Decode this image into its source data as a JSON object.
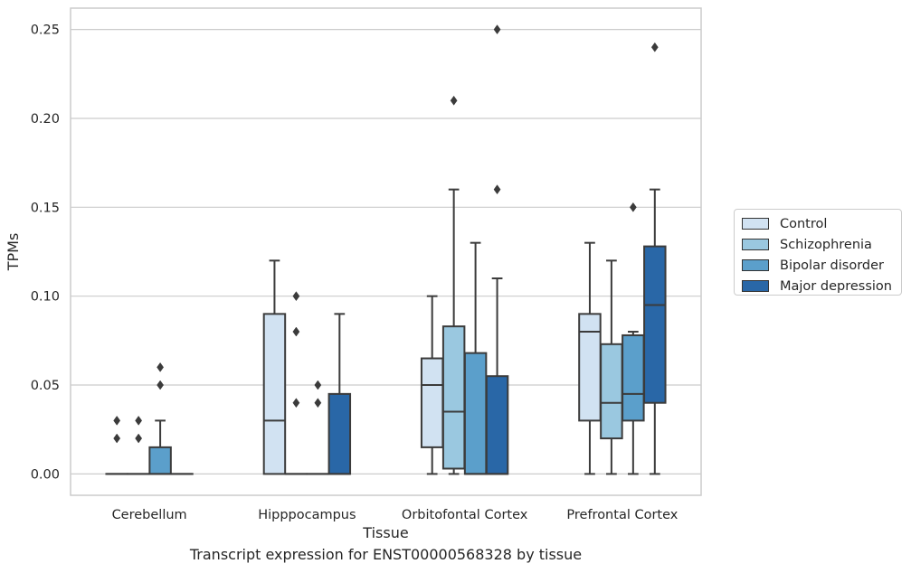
{
  "caption": "Transcript expression for ENST00000568328 by tissue",
  "chart_data": {
    "type": "box",
    "xlabel": "Tissue",
    "ylabel": "TPMs",
    "ylim": [
      -0.012,
      0.262
    ],
    "yticks": [
      "0.00",
      "0.05",
      "0.10",
      "0.15",
      "0.20",
      "0.25"
    ],
    "ytick_values": [
      0,
      0.05,
      0.1,
      0.15,
      0.2,
      0.25
    ],
    "grid": true,
    "legend_position": "right",
    "categories": [
      "Cerebellum",
      "Hipppocampus",
      "Orbitofontal Cortex",
      "Prefrontal Cortex"
    ],
    "series": [
      {
        "name": "Control",
        "color": "#d1e2f2",
        "boxes": [
          {
            "q1": 0,
            "median": 0,
            "q3": 0,
            "whisker_low": 0,
            "whisker_high": 0,
            "outliers": [
              0.02,
              0.03
            ]
          },
          {
            "q1": 0,
            "median": 0.03,
            "q3": 0.09,
            "whisker_low": 0,
            "whisker_high": 0.12,
            "outliers": []
          },
          {
            "q1": 0.015,
            "median": 0.05,
            "q3": 0.065,
            "whisker_low": 0,
            "whisker_high": 0.1,
            "outliers": []
          },
          {
            "q1": 0.03,
            "median": 0.08,
            "q3": 0.09,
            "whisker_low": 0,
            "whisker_high": 0.13,
            "outliers": []
          }
        ]
      },
      {
        "name": "Schizophrenia",
        "color": "#9ac8e0",
        "boxes": [
          {
            "q1": 0,
            "median": 0,
            "q3": 0,
            "whisker_low": 0,
            "whisker_high": 0,
            "outliers": [
              0.02,
              0.03
            ]
          },
          {
            "q1": 0,
            "median": 0,
            "q3": 0,
            "whisker_low": 0,
            "whisker_high": 0,
            "outliers": [
              0.04,
              0.08,
              0.1
            ]
          },
          {
            "q1": 0.003,
            "median": 0.035,
            "q3": 0.083,
            "whisker_low": 0,
            "whisker_high": 0.16,
            "outliers": [
              0.21
            ]
          },
          {
            "q1": 0.02,
            "median": 0.04,
            "q3": 0.073,
            "whisker_low": 0,
            "whisker_high": 0.12,
            "outliers": []
          }
        ]
      },
      {
        "name": "Bipolar disorder",
        "color": "#5b9fcb",
        "boxes": [
          {
            "q1": 0,
            "median": 0,
            "q3": 0.015,
            "whisker_low": 0,
            "whisker_high": 0.03,
            "outliers": [
              0.05,
              0.06
            ]
          },
          {
            "q1": 0,
            "median": 0,
            "q3": 0,
            "whisker_low": 0,
            "whisker_high": 0,
            "outliers": [
              0.04,
              0.05
            ]
          },
          {
            "q1": 0,
            "median": 0,
            "q3": 0.068,
            "whisker_low": 0,
            "whisker_high": 0.13,
            "outliers": []
          },
          {
            "q1": 0.03,
            "median": 0.045,
            "q3": 0.078,
            "whisker_low": 0,
            "whisker_high": 0.08,
            "outliers": [
              0.15
            ]
          }
        ]
      },
      {
        "name": "Major depression",
        "color": "#2967a7",
        "boxes": [
          {
            "q1": 0,
            "median": 0,
            "q3": 0,
            "whisker_low": 0,
            "whisker_high": 0,
            "outliers": []
          },
          {
            "q1": 0,
            "median": 0,
            "q3": 0.045,
            "whisker_low": 0,
            "whisker_high": 0.09,
            "outliers": []
          },
          {
            "q1": 0,
            "median": 0,
            "q3": 0.055,
            "whisker_low": 0,
            "whisker_high": 0.11,
            "outliers": [
              0.16,
              0.25
            ]
          },
          {
            "q1": 0.04,
            "median": 0.095,
            "q3": 0.128,
            "whisker_low": 0,
            "whisker_high": 0.16,
            "outliers": [
              0.24
            ]
          }
        ]
      }
    ]
  }
}
